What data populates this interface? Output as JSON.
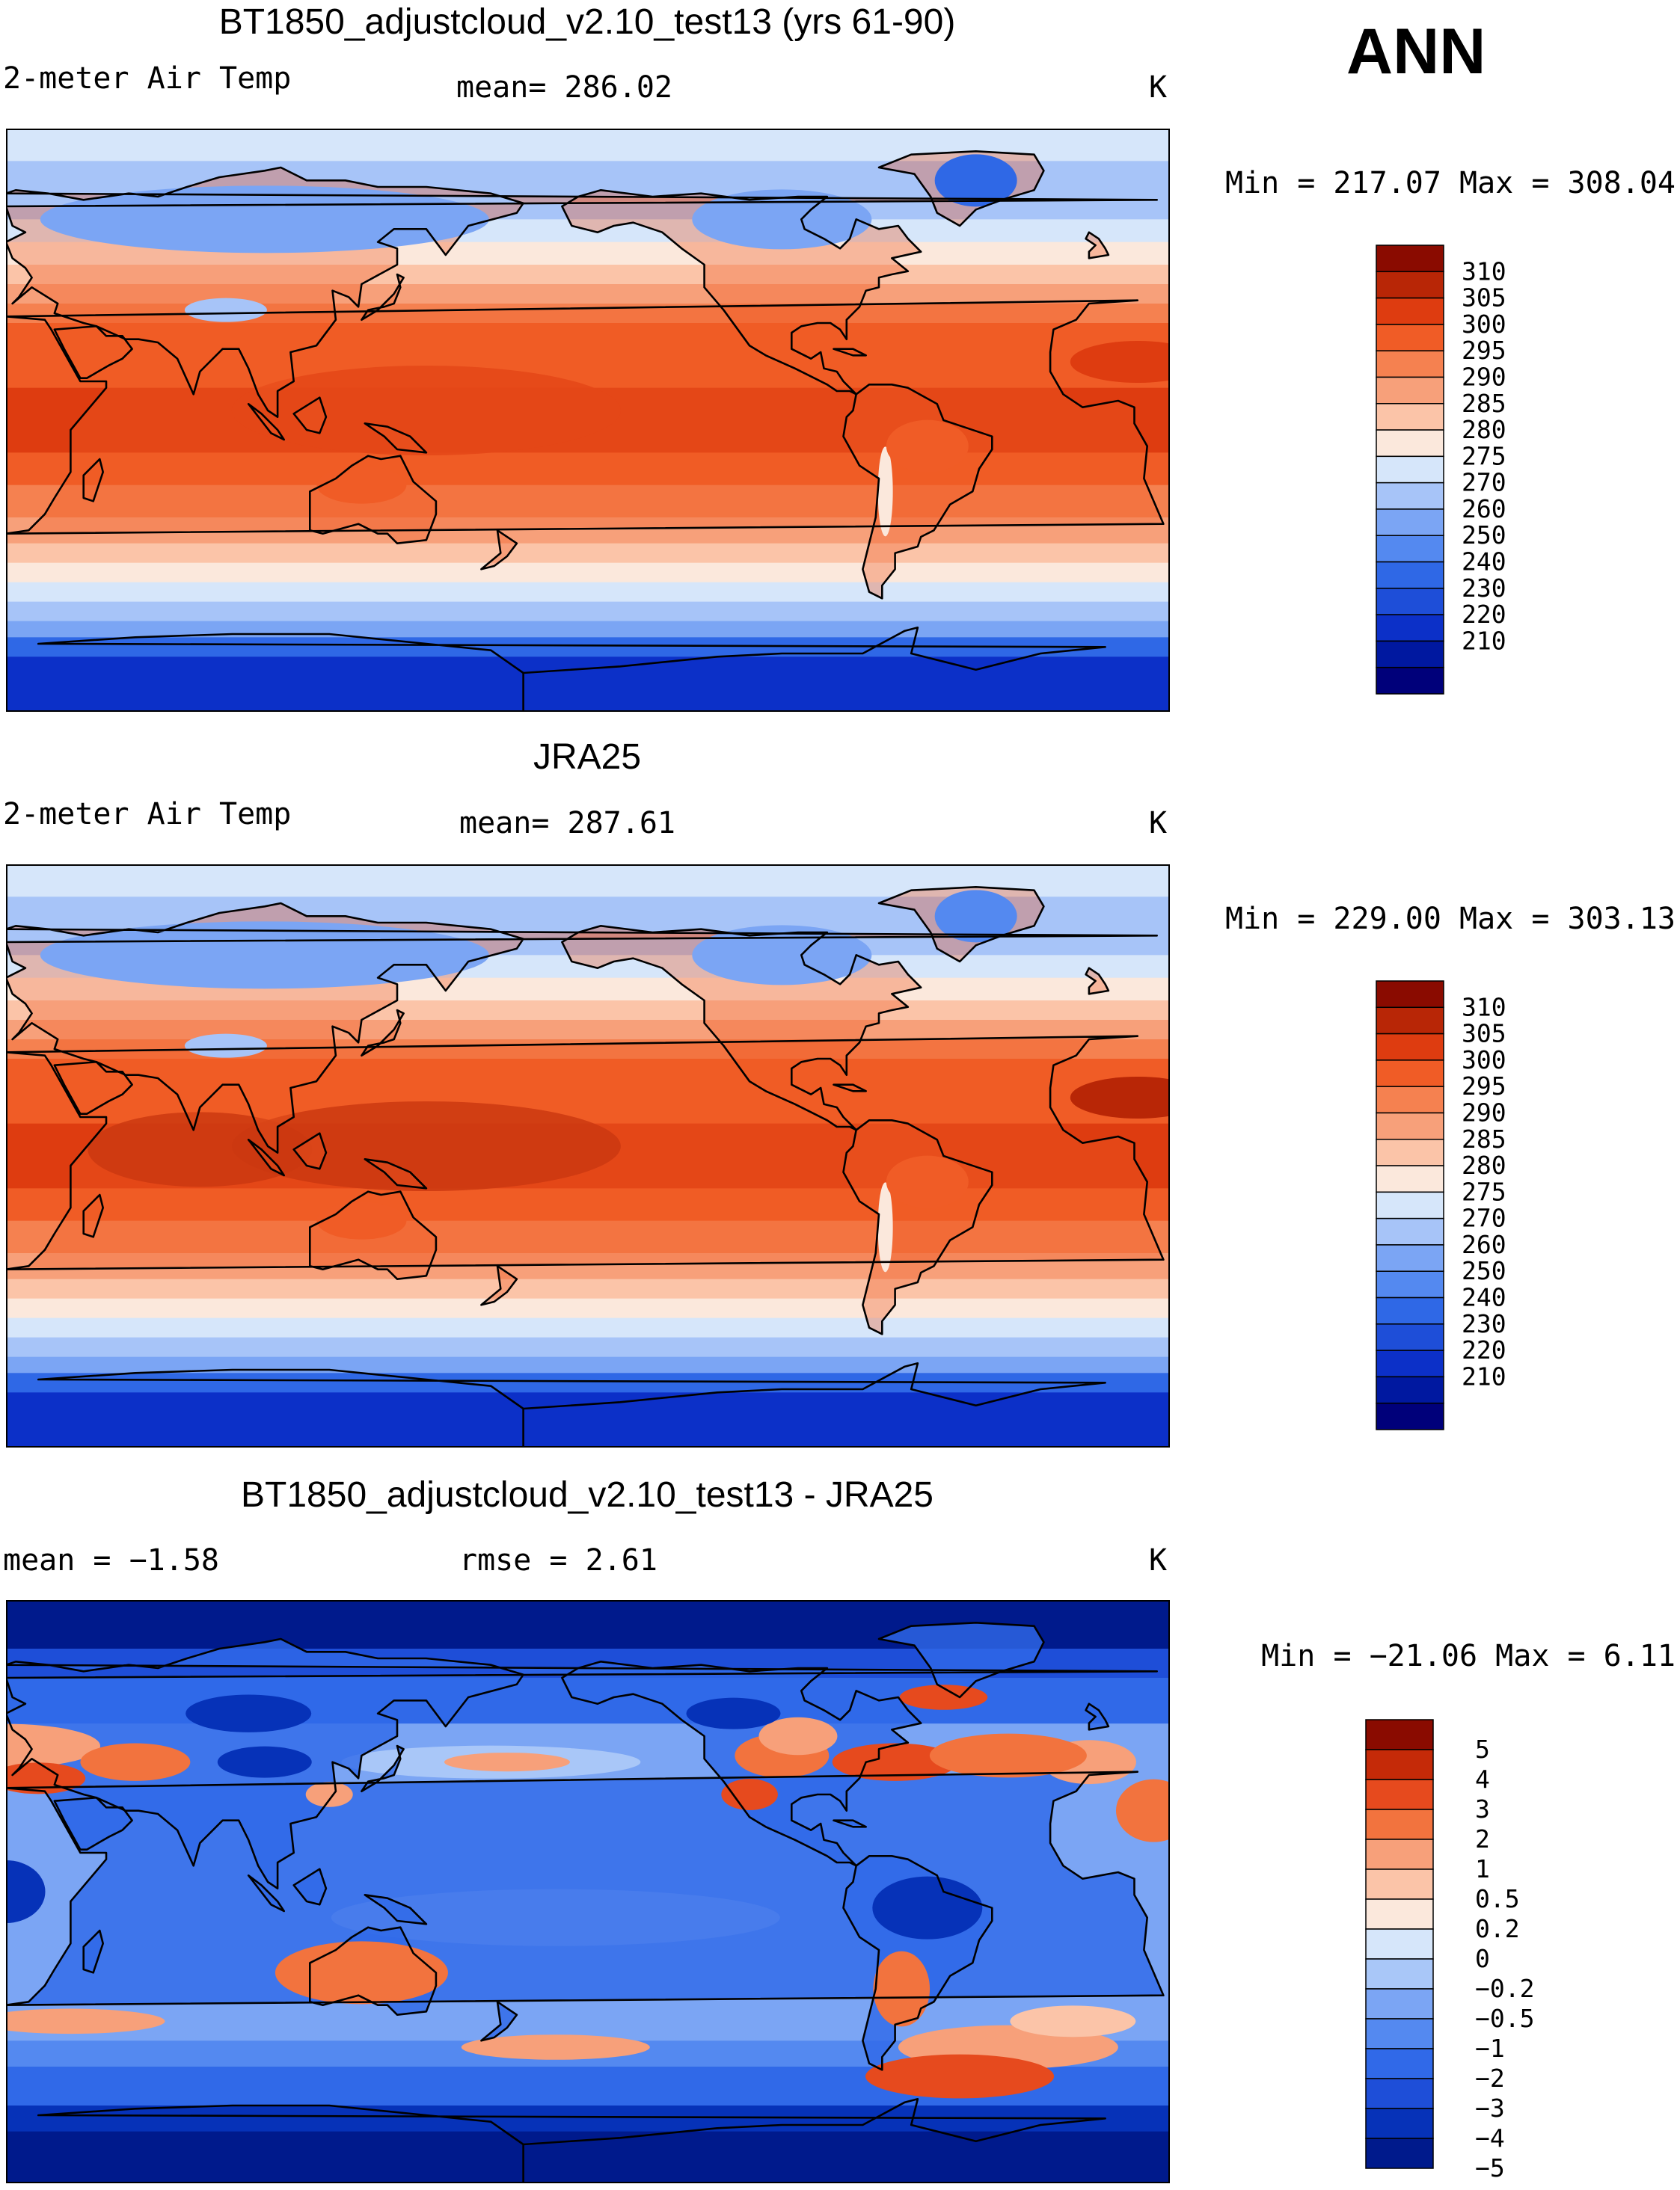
{
  "season": "ANN",
  "colors": {
    "abs_scale": [
      "#00007a",
      "#0018a0",
      "#0c30c8",
      "#1e4ed8",
      "#2f68e6",
      "#5489f0",
      "#7ba5f4",
      "#a7c4f8",
      "#d6e6fa",
      "#fbe8dc",
      "#fbc4a8",
      "#f7a07a",
      "#f58150",
      "#f05c26",
      "#de3c10",
      "#b82606",
      "#8a0b00"
    ],
    "anom_scale": [
      "#001a8c",
      "#0632b8",
      "#1e4ed8",
      "#3069e8",
      "#5489f0",
      "#7ba5f4",
      "#a9c7f8",
      "#d6e6fa",
      "#fbe8dc",
      "#fbc4a8",
      "#f7a07a",
      "#f2733e",
      "#e64a1e",
      "#c52a08",
      "#8a0b00"
    ],
    "coast": "#000000"
  },
  "panels": [
    {
      "title": "BT1850_adjustcloud_v2.10_test13 (yrs 61-90)",
      "variable": "2-meter Air Temp",
      "stat_text": "mean=  286.02",
      "units": "K",
      "range_text": "Min  =  217.07  Max  =  308.04",
      "levels": [
        "310",
        "305",
        "300",
        "295",
        "290",
        "285",
        "280",
        "275",
        "270",
        "260",
        "250",
        "240",
        "230",
        "220",
        "210"
      ]
    },
    {
      "title": "JRA25",
      "variable": "2-meter Air Temp",
      "stat_text": "mean=  287.61",
      "units": "K",
      "range_text": "Min  =  229.00  Max  =  303.13",
      "levels": [
        "310",
        "305",
        "300",
        "295",
        "290",
        "285",
        "280",
        "275",
        "270",
        "260",
        "250",
        "240",
        "230",
        "220",
        "210"
      ]
    },
    {
      "title": "BT1850_adjustcloud_v2.10_test13 - JRA25",
      "left_stat": "mean  =   −1.58",
      "right_stat": "rmse  =    2.61",
      "units": "K",
      "range_text": "Min  =  −21.06  Max  =     6.11",
      "levels": [
        "5",
        "4",
        "3",
        "2",
        "1",
        "0.5",
        "0.2",
        "0",
        "−0.2",
        "−0.5",
        "−1",
        "−2",
        "−3",
        "−4",
        "−5"
      ]
    }
  ]
}
